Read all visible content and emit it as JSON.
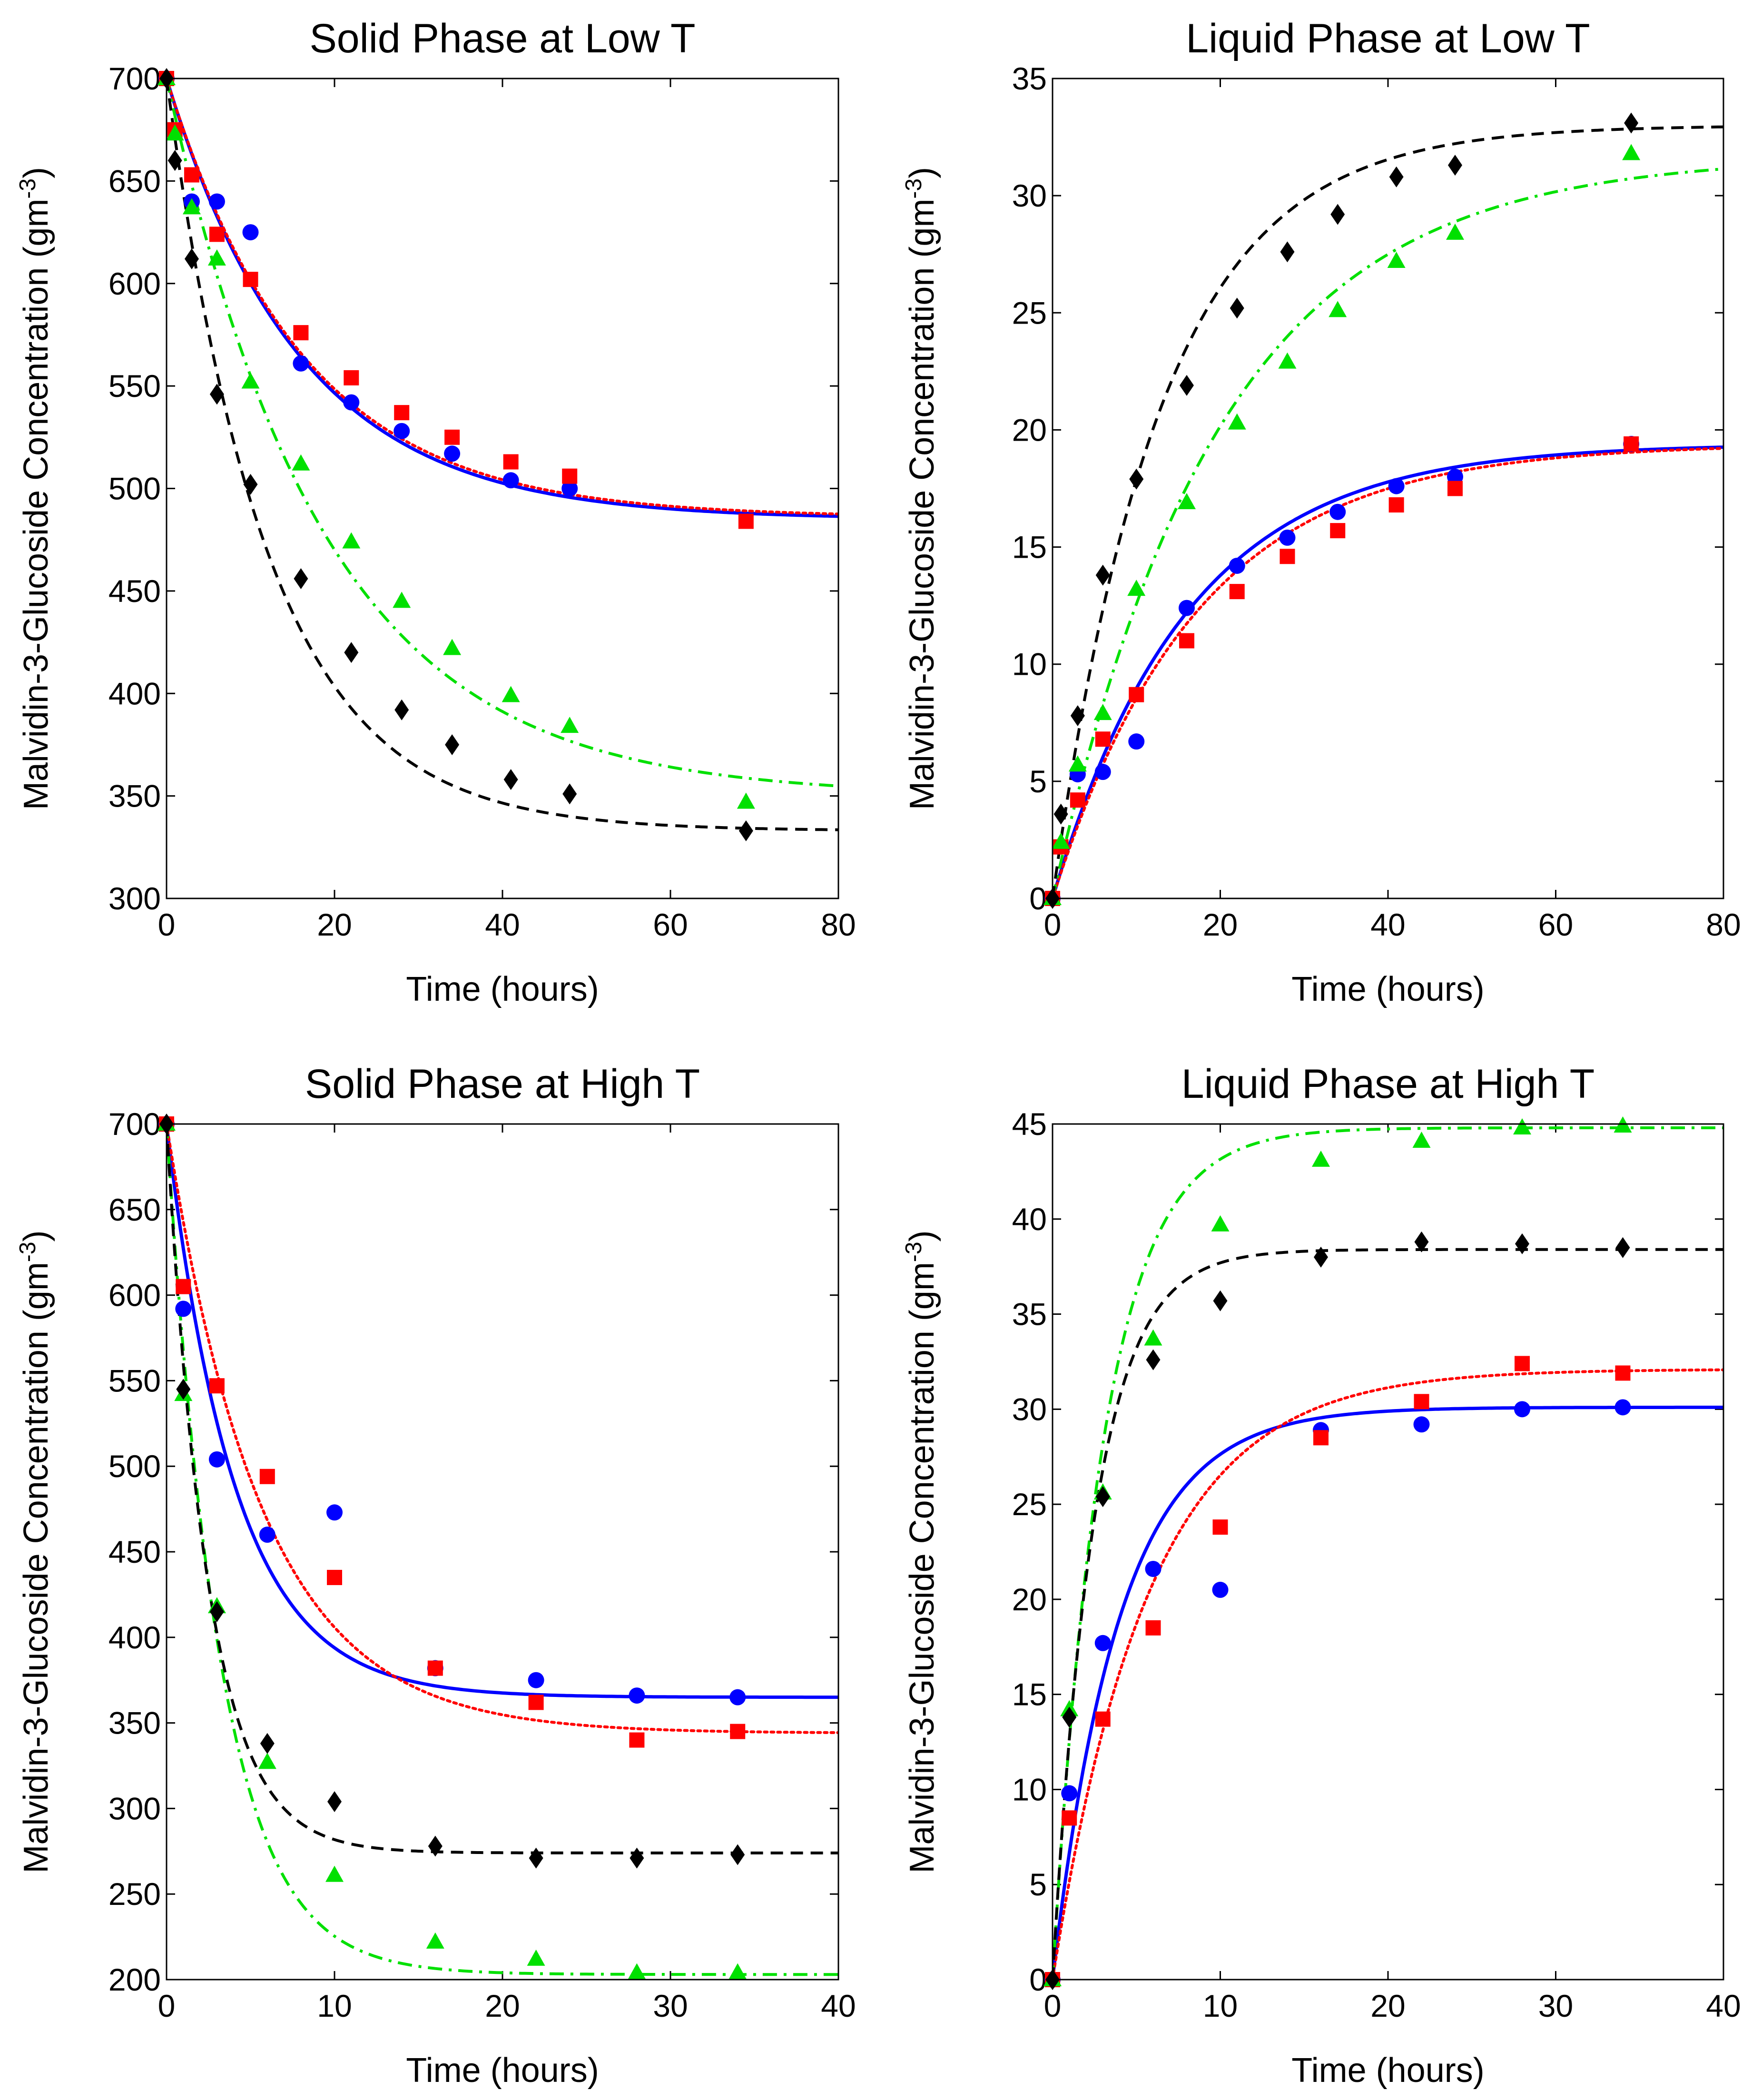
{
  "chart_data": [
    {
      "type": "line",
      "title": "Solid Phase at Low T",
      "xlabel": "Time (hours)",
      "ylabel": "Malvidin-3-Glucoside Concentration (gm",
      "ylabel_sup": "-3",
      "ylabel_close": ")",
      "xlim": [
        0,
        80
      ],
      "ylim": [
        300,
        700
      ],
      "xticks": [
        "0",
        "20",
        "40",
        "60",
        "80"
      ],
      "yticks": [
        "300",
        "350",
        "400",
        "450",
        "500",
        "550",
        "600",
        "650",
        "700"
      ],
      "series": [
        {
          "name": "blue",
          "color": "#0000ff",
          "marker": "circle",
          "line": "solid",
          "x": [
            0,
            3,
            6,
            10,
            16,
            22,
            28,
            34,
            41,
            48
          ],
          "y": [
            700,
            640,
            640,
            625,
            561,
            542,
            528,
            517,
            504,
            500
          ],
          "fit": {
            "c0": 700,
            "cinf": 485,
            "k": 0.0625
          }
        },
        {
          "name": "red",
          "color": "#ff0000",
          "marker": "square",
          "line": "dotted",
          "x": [
            0,
            1,
            3,
            6,
            10,
            16,
            22,
            28,
            34,
            41,
            48,
            69
          ],
          "y": [
            700,
            675,
            653,
            624,
            602,
            576,
            554,
            537,
            525,
            513,
            506,
            484
          ],
          "fit": {
            "c0": 700,
            "cinf": 486,
            "k": 0.0615
          }
        },
        {
          "name": "green",
          "color": "#00e000",
          "marker": "triangle",
          "line": "dashdot",
          "x": [
            0,
            1,
            3,
            6,
            10,
            16,
            22,
            28,
            34,
            41,
            48,
            69
          ],
          "y": [
            700,
            673,
            637,
            612,
            552,
            512,
            474,
            445,
            422,
            399,
            384,
            347
          ],
          "fit": {
            "c0": 700,
            "cinf": 350,
            "k": 0.0535
          }
        },
        {
          "name": "black",
          "color": "#000000",
          "marker": "diamond",
          "line": "dashed",
          "x": [
            0,
            1,
            3,
            6,
            10,
            16,
            22,
            28,
            34,
            41,
            48,
            69
          ],
          "y": [
            700,
            660,
            612,
            546,
            502,
            456,
            420,
            392,
            375,
            358,
            351,
            333
          ],
          "fit": {
            "c0": 700,
            "cinf": 333,
            "k": 0.0825
          }
        }
      ]
    },
    {
      "type": "line",
      "title": "Liquid Phase at Low T",
      "xlabel": "Time (hours)",
      "ylabel": "Malvidin-3-Glucoside Concentration (gm",
      "ylabel_sup": "-3",
      "ylabel_close": ")",
      "xlim": [
        0,
        80
      ],
      "ylim": [
        0,
        35
      ],
      "xticks": [
        "0",
        "20",
        "40",
        "60",
        "80"
      ],
      "yticks": [
        "0",
        "5",
        "10",
        "15",
        "20",
        "25",
        "30",
        "35"
      ],
      "series": [
        {
          "name": "blue",
          "color": "#0000ff",
          "marker": "circle",
          "line": "solid",
          "x": [
            0,
            3,
            6,
            10,
            16,
            22,
            28,
            34,
            41,
            48,
            69
          ],
          "y": [
            0,
            5.3,
            5.4,
            6.7,
            12.4,
            14.2,
            15.4,
            16.5,
            17.6,
            18,
            19.4
          ],
          "fit": {
            "c0": 0,
            "cinf": 19.4,
            "k": 0.062
          }
        },
        {
          "name": "red",
          "color": "#ff0000",
          "marker": "square",
          "line": "dotted",
          "x": [
            0,
            1,
            3,
            6,
            10,
            16,
            22,
            28,
            34,
            41,
            48,
            69
          ],
          "y": [
            0,
            2.2,
            4.2,
            6.8,
            8.7,
            11,
            13.1,
            14.6,
            15.7,
            16.8,
            17.5,
            19.4
          ],
          "fit": {
            "c0": 0,
            "cinf": 19.4,
            "k": 0.058
          }
        },
        {
          "name": "green",
          "color": "#00e000",
          "marker": "triangle",
          "line": "dashdot",
          "x": [
            0,
            1,
            3,
            6,
            10,
            16,
            22,
            28,
            34,
            41,
            48,
            69
          ],
          "y": [
            0,
            2.4,
            5.7,
            7.9,
            13.2,
            16.9,
            20.3,
            22.9,
            25.1,
            27.2,
            28.4,
            31.8
          ],
          "fit": {
            "c0": 0,
            "cinf": 31.7,
            "k": 0.0505
          }
        },
        {
          "name": "black",
          "color": "#000000",
          "marker": "diamond",
          "line": "dashed",
          "x": [
            0,
            1,
            3,
            6,
            10,
            16,
            22,
            28,
            34,
            41,
            48,
            69
          ],
          "y": [
            0,
            3.6,
            7.8,
            13.8,
            17.9,
            21.9,
            25.2,
            27.6,
            29.2,
            30.8,
            31.3,
            33.1
          ],
          "fit": {
            "c0": 0,
            "cinf": 33,
            "k": 0.078
          }
        }
      ]
    },
    {
      "type": "line",
      "title": "Solid Phase at High T",
      "xlabel": "Time (hours)",
      "ylabel": "Malvidin-3-Glucoside Concentration (gm",
      "ylabel_sup": "-3",
      "ylabel_close": ")",
      "xlim": [
        0,
        40
      ],
      "ylim": [
        200,
        700
      ],
      "xticks": [
        "0",
        "10",
        "20",
        "30",
        "40"
      ],
      "yticks": [
        "200",
        "250",
        "300",
        "350",
        "400",
        "450",
        "500",
        "550",
        "600",
        "650",
        "700"
      ],
      "series": [
        {
          "name": "blue",
          "color": "#0000ff",
          "marker": "circle",
          "line": "solid",
          "x": [
            0,
            1,
            3,
            6,
            10,
            16,
            22,
            28,
            34
          ],
          "y": [
            700,
            592,
            504,
            460,
            473,
            382,
            375,
            366,
            365
          ],
          "fit": {
            "c0": 700,
            "cinf": 365,
            "k": 0.245
          }
        },
        {
          "name": "red",
          "color": "#ff0000",
          "marker": "square",
          "line": "dotted",
          "x": [
            0,
            1,
            3,
            6,
            10,
            16,
            22,
            28,
            34
          ],
          "y": [
            700,
            605,
            547,
            494,
            435,
            382,
            362,
            340,
            345
          ],
          "fit": {
            "c0": 700,
            "cinf": 344,
            "k": 0.175
          }
        },
        {
          "name": "green",
          "color": "#00e000",
          "marker": "triangle",
          "line": "dashdot",
          "x": [
            0,
            1,
            3,
            6,
            10,
            16,
            22,
            28,
            34
          ],
          "y": [
            700,
            542,
            418,
            327,
            261,
            222,
            212,
            204,
            204
          ],
          "fit": {
            "c0": 700,
            "cinf": 203,
            "k": 0.31
          }
        },
        {
          "name": "black",
          "color": "#000000",
          "marker": "diamond",
          "line": "dashed",
          "x": [
            0,
            1,
            3,
            6,
            10,
            16,
            22,
            28,
            34
          ],
          "y": [
            700,
            545,
            415,
            338,
            304,
            278,
            271,
            271,
            273
          ],
          "fit": {
            "c0": 700,
            "cinf": 274,
            "k": 0.4
          }
        }
      ]
    },
    {
      "type": "line",
      "title": "Liquid Phase at High T",
      "xlabel": "Time (hours)",
      "ylabel": "Malvidin-3-Glucoside Concentration (gm",
      "ylabel_sup": "-3",
      "ylabel_close": ")",
      "xlim": [
        0,
        40
      ],
      "ylim": [
        0,
        45
      ],
      "xticks": [
        "0",
        "10",
        "20",
        "30",
        "40"
      ],
      "yticks": [
        "0",
        "5",
        "10",
        "15",
        "20",
        "25",
        "30",
        "35",
        "40",
        "45"
      ],
      "series": [
        {
          "name": "blue",
          "color": "#0000ff",
          "marker": "circle",
          "line": "solid",
          "x": [
            0,
            1,
            3,
            6,
            10,
            16,
            22,
            28,
            34
          ],
          "y": [
            0,
            9.8,
            17.7,
            21.6,
            20.5,
            28.9,
            29.2,
            30,
            30.1
          ],
          "fit": {
            "c0": 0,
            "cinf": 30.1,
            "k": 0.25
          }
        },
        {
          "name": "red",
          "color": "#ff0000",
          "marker": "square",
          "line": "dotted",
          "x": [
            0,
            1,
            3,
            6,
            10,
            16,
            22,
            28,
            34
          ],
          "y": [
            0,
            8.5,
            13.7,
            18.5,
            23.8,
            28.5,
            30.4,
            32.4,
            31.9
          ],
          "fit": {
            "c0": 0,
            "cinf": 32.1,
            "k": 0.175
          }
        },
        {
          "name": "green",
          "color": "#00e000",
          "marker": "triangle",
          "line": "dashdot",
          "x": [
            0,
            1,
            3,
            6,
            10,
            16,
            22,
            28,
            34
          ],
          "y": [
            0,
            14.2,
            25.6,
            33.7,
            39.7,
            43.1,
            44.1,
            44.8,
            44.9
          ],
          "fit": {
            "c0": 0,
            "cinf": 44.8,
            "k": 0.33
          }
        },
        {
          "name": "black",
          "color": "#000000",
          "marker": "diamond",
          "line": "dashed",
          "x": [
            0,
            1,
            3,
            6,
            10,
            16,
            22,
            28,
            34
          ],
          "y": [
            0,
            13.8,
            25.4,
            32.6,
            35.7,
            38,
            38.8,
            38.7,
            38.5
          ],
          "fit": {
            "c0": 0,
            "cinf": 38.4,
            "k": 0.4
          }
        }
      ]
    }
  ]
}
